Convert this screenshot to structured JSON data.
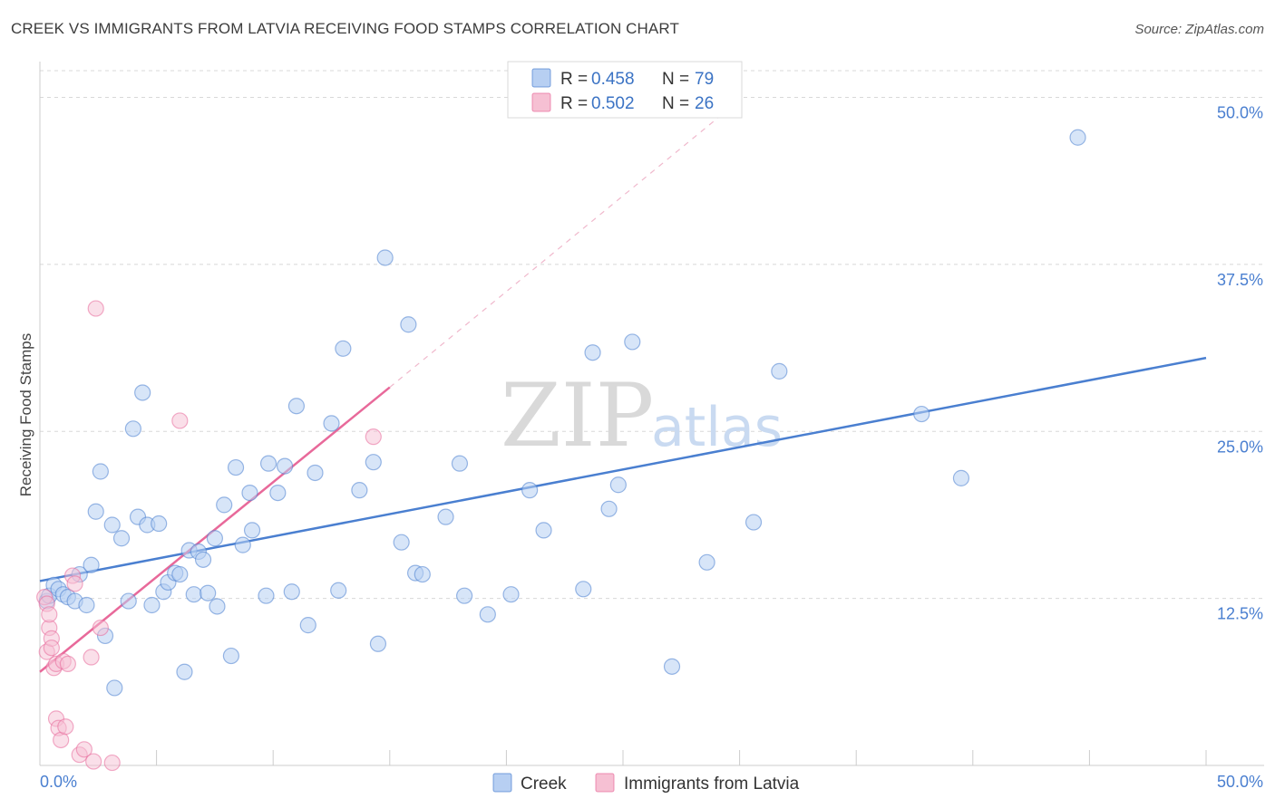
{
  "header": {
    "title": "CREEK VS IMMIGRANTS FROM LATVIA RECEIVING FOOD STAMPS CORRELATION CHART",
    "source": "Source: ZipAtlas.com"
  },
  "watermark": {
    "zip": "ZIP",
    "atlas": "atlas"
  },
  "colors": {
    "creek": "#4a7fd0",
    "creek_fill": "#b7cff2",
    "latvia": "#e8699a",
    "latvia_fill": "#f6c0d3",
    "grid": "#d8d8d8",
    "tick_text": "#4a7fd0"
  },
  "legend_top": {
    "rows": [
      {
        "r_label": "R = ",
        "r_value": "0.458",
        "n_label": "N = ",
        "n_value": "79"
      },
      {
        "r_label": "R = ",
        "r_value": "0.502",
        "n_label": "N = ",
        "n_value": "26"
      }
    ]
  },
  "chart_data": {
    "type": "scatter",
    "title": "CREEK VS IMMIGRANTS FROM LATVIA RECEIVING FOOD STAMPS CORRELATION CHART",
    "xlabel": "",
    "ylabel": "Receiving Food Stamps",
    "xlim": [
      0,
      50
    ],
    "ylim": [
      0,
      52
    ],
    "x_tick_labels": [
      "0.0%",
      "50.0%"
    ],
    "y_ticks": [
      12.5,
      25.0,
      37.5,
      50.0
    ],
    "y_tick_labels": [
      "12.5%",
      "25.0%",
      "37.5%",
      "50.0%"
    ],
    "grid": true,
    "legend_placement": "bottom-center",
    "series": [
      {
        "name": "Creek",
        "r": 0.458,
        "n": 79,
        "trend": {
          "x": [
            0,
            50
          ],
          "y": [
            13.8,
            30.5
          ],
          "dashed_extension": false
        },
        "points": [
          [
            0.3,
            12.3
          ],
          [
            0.4,
            12.7
          ],
          [
            0.6,
            13.5
          ],
          [
            0.8,
            13.2
          ],
          [
            1.0,
            12.8
          ],
          [
            1.2,
            12.6
          ],
          [
            1.5,
            12.3
          ],
          [
            2.0,
            12.0
          ],
          [
            1.7,
            14.3
          ],
          [
            2.2,
            15.0
          ],
          [
            2.4,
            19.0
          ],
          [
            2.6,
            22.0
          ],
          [
            2.8,
            9.7
          ],
          [
            3.1,
            18.0
          ],
          [
            3.2,
            5.8
          ],
          [
            3.5,
            17.0
          ],
          [
            3.8,
            12.3
          ],
          [
            4.0,
            25.2
          ],
          [
            4.2,
            18.6
          ],
          [
            4.4,
            27.9
          ],
          [
            4.6,
            18.0
          ],
          [
            4.8,
            12.0
          ],
          [
            5.1,
            18.1
          ],
          [
            5.3,
            13.0
          ],
          [
            5.5,
            13.7
          ],
          [
            5.8,
            14.4
          ],
          [
            6.0,
            14.3
          ],
          [
            6.2,
            7.0
          ],
          [
            6.4,
            16.1
          ],
          [
            6.6,
            12.8
          ],
          [
            6.8,
            16.0
          ],
          [
            7.0,
            15.4
          ],
          [
            7.2,
            12.9
          ],
          [
            7.5,
            17.0
          ],
          [
            7.6,
            11.9
          ],
          [
            7.9,
            19.5
          ],
          [
            8.2,
            8.2
          ],
          [
            8.4,
            22.3
          ],
          [
            8.7,
            16.5
          ],
          [
            9.0,
            20.4
          ],
          [
            9.1,
            17.6
          ],
          [
            9.7,
            12.7
          ],
          [
            9.8,
            22.6
          ],
          [
            10.2,
            20.4
          ],
          [
            10.5,
            22.4
          ],
          [
            10.8,
            13.0
          ],
          [
            11.0,
            26.9
          ],
          [
            11.5,
            10.5
          ],
          [
            11.8,
            21.9
          ],
          [
            12.5,
            25.6
          ],
          [
            12.8,
            13.1
          ],
          [
            13.0,
            31.2
          ],
          [
            13.7,
            20.6
          ],
          [
            14.3,
            22.7
          ],
          [
            14.5,
            9.1
          ],
          [
            14.8,
            38.0
          ],
          [
            15.5,
            16.7
          ],
          [
            15.8,
            33.0
          ],
          [
            16.1,
            14.4
          ],
          [
            16.4,
            14.3
          ],
          [
            17.4,
            18.6
          ],
          [
            18.0,
            22.6
          ],
          [
            18.2,
            12.7
          ],
          [
            19.2,
            11.3
          ],
          [
            20.2,
            12.8
          ],
          [
            21.0,
            20.6
          ],
          [
            21.6,
            17.6
          ],
          [
            23.3,
            13.2
          ],
          [
            23.7,
            30.9
          ],
          [
            24.4,
            19.2
          ],
          [
            24.8,
            21.0
          ],
          [
            25.4,
            31.7
          ],
          [
            27.1,
            7.4
          ],
          [
            28.6,
            15.2
          ],
          [
            30.6,
            18.2
          ],
          [
            31.7,
            29.5
          ],
          [
            37.8,
            26.3
          ],
          [
            39.5,
            21.5
          ],
          [
            44.5,
            47.0
          ]
        ]
      },
      {
        "name": "Immigrants from Latvia",
        "r": 0.502,
        "n": 26,
        "trend": {
          "x": [
            0,
            15
          ],
          "y": [
            7.0,
            28.3
          ],
          "dashed_extension": true,
          "dashed_to": [
            30.0,
            49.8
          ]
        },
        "points": [
          [
            0.2,
            12.6
          ],
          [
            0.3,
            12.1
          ],
          [
            0.3,
            8.5
          ],
          [
            0.4,
            10.3
          ],
          [
            0.4,
            11.3
          ],
          [
            0.5,
            9.5
          ],
          [
            0.5,
            8.8
          ],
          [
            0.6,
            7.3
          ],
          [
            0.7,
            7.6
          ],
          [
            0.7,
            3.5
          ],
          [
            0.8,
            2.8
          ],
          [
            0.9,
            1.9
          ],
          [
            1.0,
            7.8
          ],
          [
            1.2,
            7.6
          ],
          [
            1.1,
            2.9
          ],
          [
            1.4,
            14.2
          ],
          [
            1.5,
            13.6
          ],
          [
            1.7,
            0.8
          ],
          [
            1.9,
            1.2
          ],
          [
            2.2,
            8.1
          ],
          [
            2.3,
            0.3
          ],
          [
            2.4,
            34.2
          ],
          [
            2.6,
            10.3
          ],
          [
            3.1,
            0.2
          ],
          [
            6.0,
            25.8
          ],
          [
            14.3,
            24.6
          ]
        ]
      }
    ]
  },
  "legend_bottom": {
    "items": [
      {
        "label": "Creek"
      },
      {
        "label": "Immigrants from Latvia"
      }
    ]
  }
}
